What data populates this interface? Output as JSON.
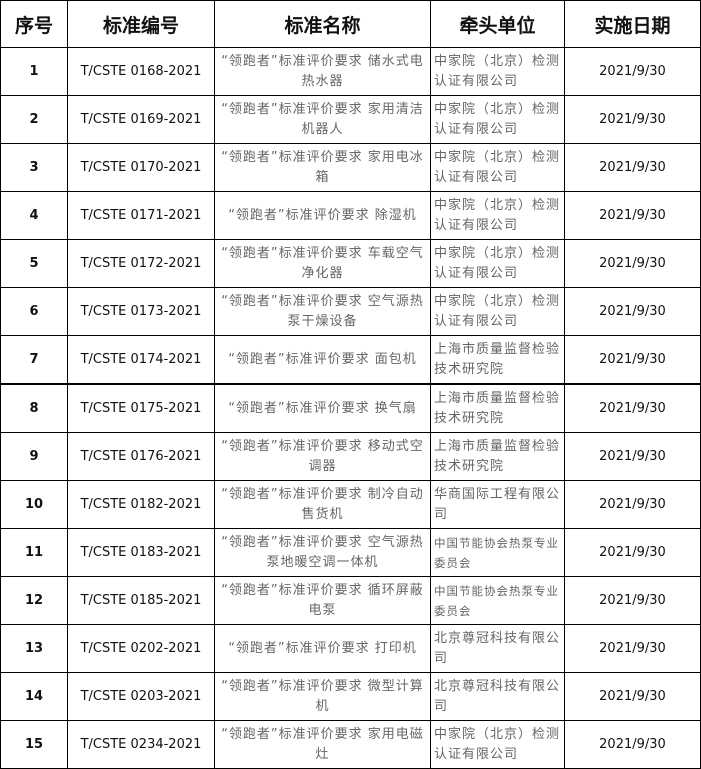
{
  "headers": [
    "序号",
    "标准编号",
    "标准名称",
    "牵头单位",
    "实施日期"
  ],
  "rows": [
    {
      "no": "1",
      "code": "T/CSTE 0168-2021",
      "name": "“领跑者”标准评价要求 储水式电热水器",
      "unit": "中家院（北京）检测认证有限公司",
      "date": "2021/9/30"
    },
    {
      "no": "2",
      "code": "T/CSTE 0169-2021",
      "name": "“领跑者”标准评价要求 家用清洁机器人",
      "unit": "中家院（北京）检测认证有限公司",
      "date": "2021/9/30"
    },
    {
      "no": "3",
      "code": "T/CSTE 0170-2021",
      "name": "“领跑者”标准评价要求 家用电冰箱",
      "unit": "中家院（北京）检测认证有限公司",
      "date": "2021/9/30"
    },
    {
      "no": "4",
      "code": "T/CSTE 0171-2021",
      "name": "“领跑者”标准评价要求 除湿机",
      "unit": "中家院（北京）检测认证有限公司",
      "date": "2021/9/30"
    },
    {
      "no": "5",
      "code": "T/CSTE 0172-2021",
      "name": "“领跑者”标准评价要求 车载空气净化器",
      "unit": "中家院（北京）检测认证有限公司",
      "date": "2021/9/30"
    },
    {
      "no": "6",
      "code": "T/CSTE 0173-2021",
      "name": "“领跑者”标准评价要求 空气源热泵干燥设备",
      "unit": "中家院（北京）检测认证有限公司",
      "date": "2021/9/30"
    },
    {
      "no": "7",
      "code": "T/CSTE 0174-2021",
      "name": "“领跑者”标准评价要求 面包机",
      "unit": "上海市质量监督检验技术研究院",
      "date": "2021/9/30"
    },
    {
      "no": "8",
      "code": "T/CSTE 0175-2021",
      "name": "“领跑者”标准评价要求 换气扇",
      "unit": "上海市质量监督检验技术研究院",
      "date": "2021/9/30"
    },
    {
      "no": "9",
      "code": "T/CSTE 0176-2021",
      "name": "“领跑者”标准评价要求 移动式空调器",
      "unit": "上海市质量监督检验技术研究院",
      "date": "2021/9/30"
    },
    {
      "no": "10",
      "code": "T/CSTE 0182-2021",
      "name": "“领跑者”标准评价要求 制冷自动售货机",
      "unit": "华商国际工程有限公司",
      "date": "2021/9/30"
    },
    {
      "no": "11",
      "code": "T/CSTE 0183-2021",
      "name": "“领跑者”标准评价要求 空气源热泵地暖空调一体机",
      "unit": "中国节能协会热泵专业委员会",
      "date": "2021/9/30"
    },
    {
      "no": "12",
      "code": "T/CSTE 0185-2021",
      "name": "“领跑者”标准评价要求 循环屏蔽电泵",
      "unit": "中国节能协会热泵专业委员会",
      "date": "2021/9/30"
    },
    {
      "no": "13",
      "code": "T/CSTE 0202-2021",
      "name": "“领跑者”标准评价要求 打印机",
      "unit": "北京尊冠科技有限公司",
      "date": "2021/9/30"
    },
    {
      "no": "14",
      "code": "T/CSTE 0203-2021",
      "name": "“领跑者”标准评价要求 微型计算机",
      "unit": "北京尊冠科技有限公司",
      "date": "2021/9/30"
    },
    {
      "no": "15",
      "code": "T/CSTE 0234-2021",
      "name": "“领跑者”标准评价要求 家用电磁灶",
      "unit": "中家院（北京）检测认证有限公司",
      "date": "2021/9/30"
    }
  ]
}
